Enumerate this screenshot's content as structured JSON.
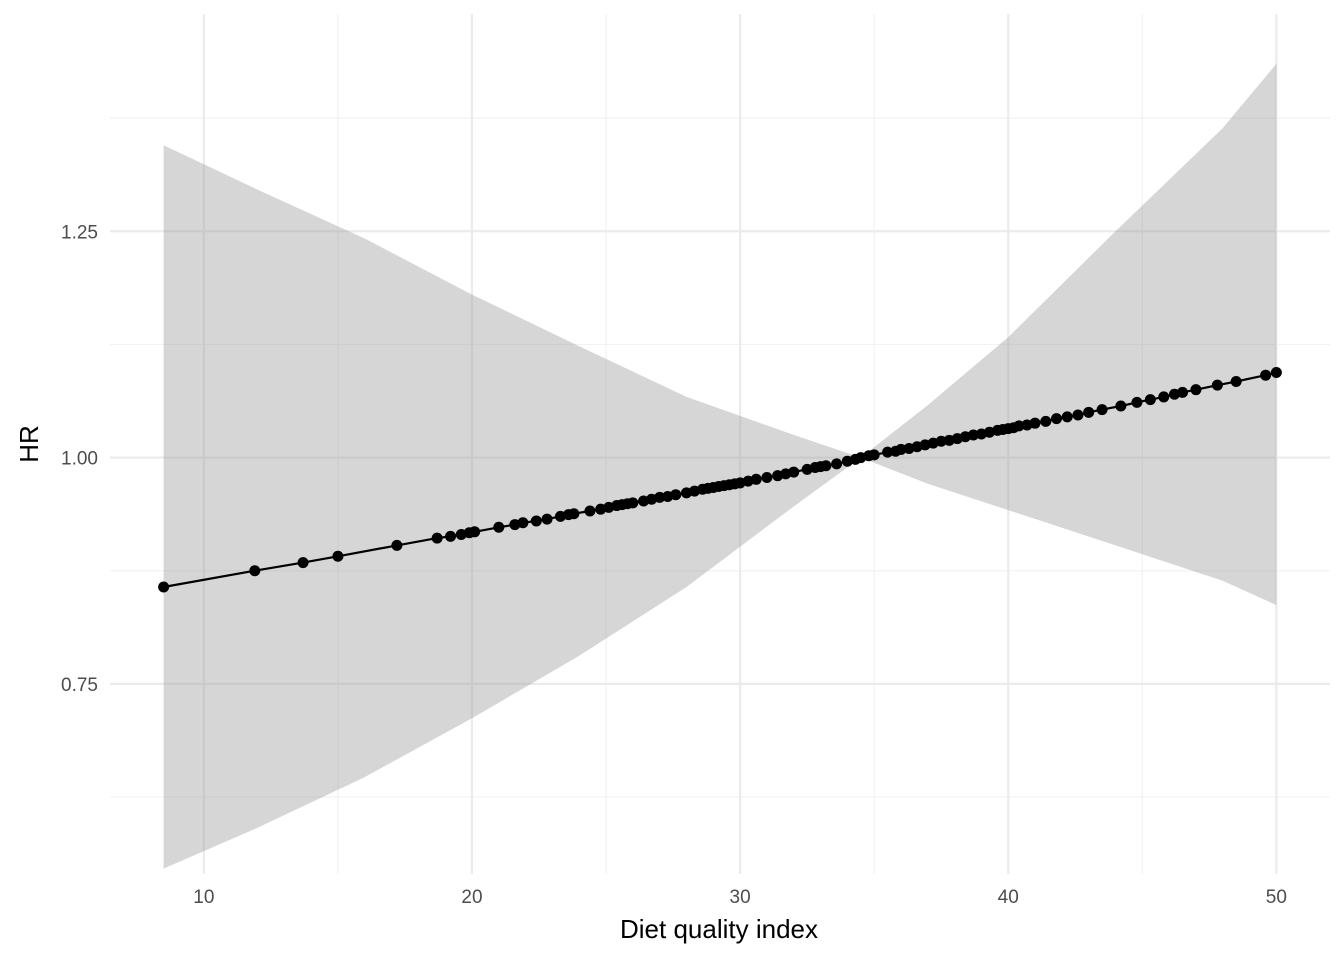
{
  "chart_data": {
    "type": "line",
    "title": "",
    "xlabel": "Diet quality index",
    "ylabel": "HR",
    "xlim": [
      6.5,
      52
    ],
    "ylim": [
      0.54,
      1.49
    ],
    "x_ticks": [
      10,
      20,
      30,
      40,
      50
    ],
    "x_tick_labels": [
      "10",
      "20",
      "30",
      "40",
      "50"
    ],
    "y_ticks": [
      0.75,
      1.0,
      1.25
    ],
    "y_tick_labels": [
      "0.75",
      "1.00",
      "1.25"
    ],
    "grid": true,
    "legend": "none",
    "reference_x": 34.5,
    "log_hr_slope_per_unit": 0.00584,
    "ci_log_halfwidth_per_unit": 0.0175,
    "x": [
      8.5,
      11.9,
      13.7,
      15.0,
      17.2,
      18.7,
      19.2,
      19.6,
      19.9,
      20.1,
      21.0,
      21.6,
      21.9,
      22.4,
      22.8,
      23.3,
      23.6,
      23.8,
      24.4,
      24.8,
      25.1,
      25.4,
      25.6,
      25.8,
      26.0,
      26.4,
      26.7,
      27.0,
      27.3,
      27.6,
      28.0,
      28.3,
      28.6,
      28.8,
      29.0,
      29.2,
      29.4,
      29.6,
      29.8,
      30.0,
      30.3,
      30.6,
      31.0,
      31.4,
      31.7,
      32.0,
      32.5,
      32.8,
      33.0,
      33.2,
      33.6,
      34.0,
      34.3,
      34.5,
      34.8,
      35.0,
      35.5,
      35.8,
      36.0,
      36.3,
      36.6,
      36.9,
      37.2,
      37.5,
      37.8,
      38.1,
      38.4,
      38.7,
      39.0,
      39.3,
      39.6,
      39.8,
      40.0,
      40.2,
      40.4,
      40.7,
      41.0,
      41.4,
      41.8,
      42.2,
      42.6,
      43.0,
      43.5,
      44.2,
      44.8,
      45.3,
      45.8,
      46.2,
      46.5,
      47.0,
      47.8,
      48.5,
      49.6,
      50.0
    ],
    "y": [
      0.857,
      0.875,
      0.884,
      0.891,
      0.903,
      0.911,
      0.913,
      0.915,
      0.917,
      0.918,
      0.923,
      0.926,
      0.928,
      0.93,
      0.932,
      0.935,
      0.937,
      0.938,
      0.941,
      0.943,
      0.945,
      0.947,
      0.948,
      0.949,
      0.95,
      0.952,
      0.954,
      0.956,
      0.957,
      0.959,
      0.961,
      0.963,
      0.965,
      0.966,
      0.967,
      0.968,
      0.969,
      0.97,
      0.971,
      0.972,
      0.974,
      0.976,
      0.978,
      0.98,
      0.982,
      0.984,
      0.987,
      0.989,
      0.99,
      0.991,
      0.993,
      0.996,
      0.998,
      1.0,
      1.002,
      1.003,
      1.006,
      1.007,
      1.009,
      1.01,
      1.012,
      1.014,
      1.016,
      1.018,
      1.019,
      1.021,
      1.023,
      1.025,
      1.026,
      1.028,
      1.03,
      1.031,
      1.032,
      1.033,
      1.035,
      1.036,
      1.038,
      1.04,
      1.043,
      1.045,
      1.047,
      1.05,
      1.053,
      1.057,
      1.061,
      1.064,
      1.067,
      1.07,
      1.072,
      1.075,
      1.08,
      1.084,
      1.091,
      1.094
    ],
    "ribbon_x": [
      8.5,
      12,
      16,
      20,
      24,
      28,
      32,
      34.5,
      37,
      40,
      44,
      48,
      50
    ],
    "ribbon_lower": [
      0.546,
      0.591,
      0.647,
      0.712,
      0.781,
      0.857,
      0.946,
      1.0,
      0.971,
      0.942,
      0.903,
      0.864,
      0.837
    ],
    "ribbon_upper": [
      1.345,
      1.296,
      1.242,
      1.18,
      1.123,
      1.067,
      1.025,
      1.0,
      1.058,
      1.133,
      1.25,
      1.364,
      1.435
    ],
    "colors": {
      "line": "#000000",
      "points": "#000000",
      "ribbon": "#d6d6d6",
      "grid_major": "#ebebeb",
      "grid_minor": "#f2f2f2",
      "tick_text": "#4d4d4d"
    }
  }
}
